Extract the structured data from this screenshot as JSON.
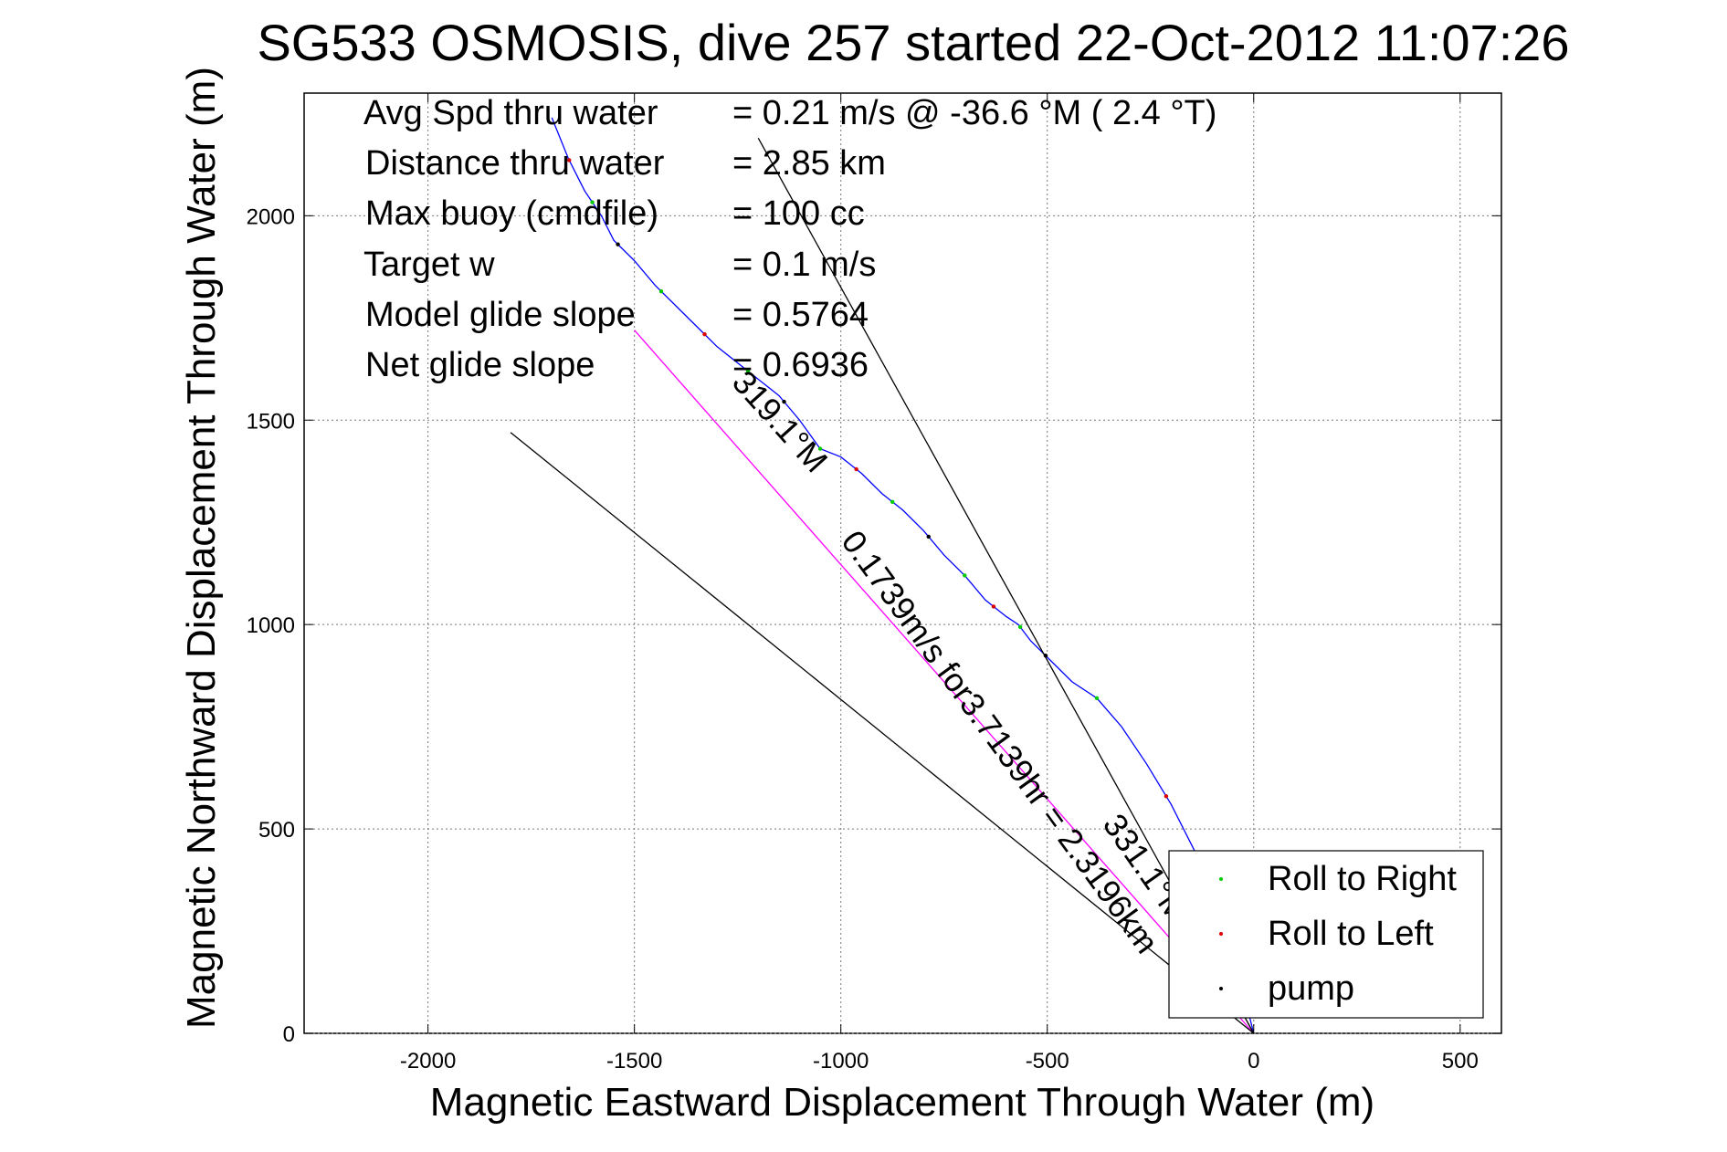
{
  "chart_data": {
    "type": "line",
    "title": "SG533 OSMOSIS, dive 257 started 22-Oct-2012 11:07:26",
    "xlabel": "Magnetic Eastward Displacement Through Water (m)",
    "ylabel": "Magnetic Northward Displacement Through Water (m)",
    "xlim": [
      -2300,
      600
    ],
    "ylim": [
      0,
      2300
    ],
    "xticks": [
      -2000,
      -1500,
      -1000,
      -500,
      0,
      500
    ],
    "yticks": [
      0,
      500,
      1000,
      1500,
      2000
    ],
    "xtick_labels": [
      "-2000",
      "-1500",
      "-1000",
      "-500",
      "0",
      "500"
    ],
    "ytick_labels": [
      "0",
      "500",
      "1000",
      "1500",
      "2000"
    ],
    "grid": true,
    "legend_position": "bottom-right",
    "legend": [
      {
        "label": "Roll to Right",
        "color": "#00cc00"
      },
      {
        "label": "Roll to Left",
        "color": "#dd0000"
      },
      {
        "label": "pump",
        "color": "#000000"
      }
    ],
    "stats": [
      {
        "label": "Avg Spd thru water",
        "value": "=  0.21 m/s @ -36.6 °M (  2.4 °T)"
      },
      {
        "label": "Distance thru water",
        "value": "=  2.85 km"
      },
      {
        "label": "Max buoy (cmdfile)",
        "value": "= 100 cc"
      },
      {
        "label": "Target w",
        "value": "= 0.1 m/s"
      },
      {
        "label": "Model glide slope",
        "value": "= 0.5764"
      },
      {
        "label": "Net glide slope",
        "value": "= 0.6936"
      }
    ],
    "annotations": [
      "319.1°M",
      "0.1739m/s for3.7139hr = 2.3196km",
      "331.1°M"
    ],
    "series": [
      {
        "color": "#0000ff",
        "x": [
          0,
          -30,
          -80,
          -140,
          -200,
          -260,
          -320,
          -380,
          -440,
          -500,
          -540,
          -570,
          -600,
          -650,
          -700,
          -750,
          -800,
          -850,
          -900,
          -950,
          -1000,
          -1050,
          -1100,
          -1150,
          -1200,
          -1250,
          -1300,
          -1350,
          -1400,
          -1450,
          -1500,
          -1550,
          -1580,
          -1620,
          -1660,
          -1700
        ],
        "y": [
          0,
          120,
          320,
          440,
          560,
          660,
          750,
          820,
          860,
          920,
          960,
          1000,
          1020,
          1060,
          1120,
          1170,
          1230,
          1280,
          1320,
          1370,
          1410,
          1430,
          1500,
          1560,
          1600,
          1640,
          1680,
          1730,
          1780,
          1830,
          1890,
          1940,
          2000,
          2060,
          2140,
          2240
        ]
      },
      {
        "color": "#ff00ff",
        "x": [
          0,
          -1500
        ],
        "y": [
          0,
          1720
        ]
      },
      {
        "color": "#000000",
        "x": [
          0,
          -1800
        ],
        "y": [
          0,
          1470
        ]
      },
      {
        "color": "#000000",
        "x": [
          0,
          -1200
        ],
        "y": [
          0,
          2190
        ]
      }
    ]
  }
}
